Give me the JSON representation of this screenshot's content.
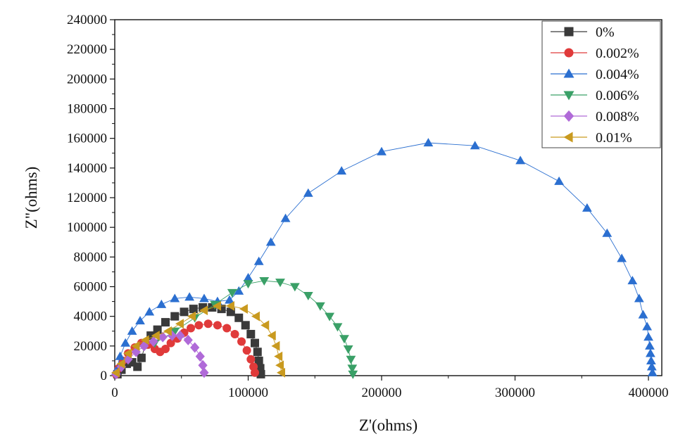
{
  "chart_data": {
    "type": "scatter",
    "xlabel": "Z'(ohms)",
    "ylabel": "Z\"(ohms)",
    "xlim": [
      0,
      410000
    ],
    "ylim": [
      0,
      240000
    ],
    "xticks": [
      0,
      100000,
      200000,
      300000,
      400000
    ],
    "yticks": [
      0,
      20000,
      40000,
      60000,
      80000,
      100000,
      120000,
      140000,
      160000,
      180000,
      200000,
      220000,
      240000
    ],
    "grid": false,
    "legend_position": "top-right",
    "series": [
      {
        "name": "0%",
        "color": "#3a3a3a",
        "marker": "square",
        "points": [
          [
            2000,
            1000
          ],
          [
            5000,
            4000
          ],
          [
            9000,
            8000
          ],
          [
            13000,
            9000
          ],
          [
            17000,
            6000
          ],
          [
            20000,
            12000
          ],
          [
            23000,
            21000
          ],
          [
            27000,
            27000
          ],
          [
            32000,
            31000
          ],
          [
            38000,
            36000
          ],
          [
            45000,
            40000
          ],
          [
            52000,
            43000
          ],
          [
            59000,
            45000
          ],
          [
            66000,
            46000
          ],
          [
            73000,
            46000
          ],
          [
            80000,
            45000
          ],
          [
            87000,
            43000
          ],
          [
            93000,
            39000
          ],
          [
            98000,
            34000
          ],
          [
            102000,
            28000
          ],
          [
            105000,
            22000
          ],
          [
            107000,
            16000
          ],
          [
            108000,
            10000
          ],
          [
            109000,
            5000
          ],
          [
            109500,
            1000
          ]
        ]
      },
      {
        "name": "0.002%",
        "color": "#e03a3a",
        "marker": "circle",
        "points": [
          [
            1000,
            1000
          ],
          [
            3000,
            5000
          ],
          [
            6000,
            10000
          ],
          [
            10000,
            15000
          ],
          [
            15000,
            19000
          ],
          [
            20000,
            22000
          ],
          [
            25000,
            21000
          ],
          [
            30000,
            18000
          ],
          [
            34000,
            16000
          ],
          [
            38000,
            18000
          ],
          [
            42000,
            22000
          ],
          [
            47000,
            25000
          ],
          [
            52000,
            29000
          ],
          [
            57000,
            32000
          ],
          [
            63000,
            34000
          ],
          [
            70000,
            35000
          ],
          [
            77000,
            34000
          ],
          [
            84000,
            32000
          ],
          [
            90000,
            28000
          ],
          [
            95000,
            23000
          ],
          [
            99000,
            17000
          ],
          [
            102000,
            11000
          ],
          [
            104000,
            6000
          ],
          [
            105000,
            2000
          ]
        ]
      },
      {
        "name": "0.004%",
        "color": "#2b6fd0",
        "marker": "triangle-up",
        "points": [
          [
            1000,
            3000
          ],
          [
            4000,
            13000
          ],
          [
            8000,
            22000
          ],
          [
            13000,
            30000
          ],
          [
            19000,
            37000
          ],
          [
            26000,
            43000
          ],
          [
            35000,
            48000
          ],
          [
            45000,
            52000
          ],
          [
            56000,
            53000
          ],
          [
            67000,
            52000
          ],
          [
            77000,
            50000
          ],
          [
            86000,
            51000
          ],
          [
            93000,
            57000
          ],
          [
            100000,
            66000
          ],
          [
            108000,
            77000
          ],
          [
            117000,
            90000
          ],
          [
            128000,
            106000
          ],
          [
            145000,
            123000
          ],
          [
            170000,
            138000
          ],
          [
            200000,
            151000
          ],
          [
            235000,
            157000
          ],
          [
            270000,
            155000
          ],
          [
            304000,
            145000
          ],
          [
            333000,
            131000
          ],
          [
            354000,
            113000
          ],
          [
            369000,
            96000
          ],
          [
            380000,
            79000
          ],
          [
            388000,
            64000
          ],
          [
            393000,
            52000
          ],
          [
            396000,
            41000
          ],
          [
            399000,
            33000
          ],
          [
            400000,
            26000
          ],
          [
            401000,
            20000
          ],
          [
            401500,
            15000
          ],
          [
            402000,
            10000
          ],
          [
            402500,
            6000
          ],
          [
            403000,
            2000
          ]
        ]
      },
      {
        "name": "0.006%",
        "color": "#3aa067",
        "marker": "triangle-down",
        "points": [
          [
            30000,
            22000
          ],
          [
            45000,
            30000
          ],
          [
            60000,
            39000
          ],
          [
            75000,
            48000
          ],
          [
            88000,
            56000
          ],
          [
            100000,
            62000
          ],
          [
            112000,
            64000
          ],
          [
            124000,
            63000
          ],
          [
            135000,
            60000
          ],
          [
            145000,
            54000
          ],
          [
            154000,
            47000
          ],
          [
            161000,
            40000
          ],
          [
            167000,
            33000
          ],
          [
            172000,
            25000
          ],
          [
            175000,
            18000
          ],
          [
            177000,
            11000
          ],
          [
            178000,
            5000
          ],
          [
            178500,
            1000
          ]
        ]
      },
      {
        "name": "0.008%",
        "color": "#b06ad8",
        "marker": "diamond",
        "points": [
          [
            1000,
            1000
          ],
          [
            5000,
            6000
          ],
          [
            10000,
            11000
          ],
          [
            16000,
            16000
          ],
          [
            22000,
            20000
          ],
          [
            29000,
            23000
          ],
          [
            36000,
            26000
          ],
          [
            43000,
            27000
          ],
          [
            49000,
            27000
          ],
          [
            55000,
            24000
          ],
          [
            60000,
            19000
          ],
          [
            64000,
            13000
          ],
          [
            66000,
            7000
          ],
          [
            67000,
            2000
          ]
        ]
      },
      {
        "name": "0.01%",
        "color": "#c99a1f",
        "marker": "triangle-left",
        "points": [
          [
            1000,
            2000
          ],
          [
            5000,
            8000
          ],
          [
            10000,
            15000
          ],
          [
            16000,
            20000
          ],
          [
            23000,
            24000
          ],
          [
            31000,
            27000
          ],
          [
            40000,
            30000
          ],
          [
            49000,
            35000
          ],
          [
            58000,
            40000
          ],
          [
            67000,
            44000
          ],
          [
            77000,
            47000
          ],
          [
            87000,
            47000
          ],
          [
            97000,
            45000
          ],
          [
            106000,
            40000
          ],
          [
            113000,
            34000
          ],
          [
            118000,
            27000
          ],
          [
            121000,
            20000
          ],
          [
            123000,
            13000
          ],
          [
            124000,
            7000
          ],
          [
            125000,
            2000
          ]
        ]
      }
    ]
  }
}
